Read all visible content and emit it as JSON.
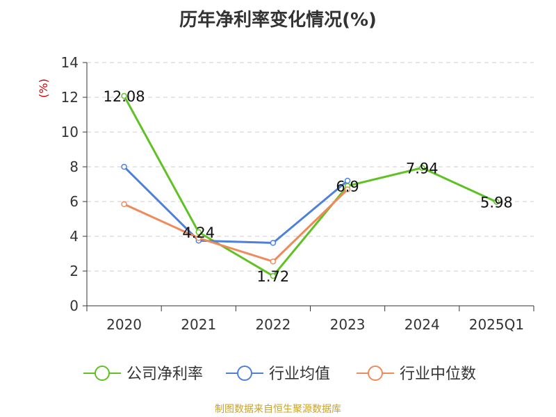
{
  "chart_data": {
    "type": "line",
    "title": "历年净利率变化情况(%)",
    "ylabel": "(%)",
    "xlabel": "",
    "categories": [
      "2020",
      "2021",
      "2022",
      "2023",
      "2024",
      "2025Q1"
    ],
    "ylim": [
      0,
      14
    ],
    "yticks": [
      0,
      2,
      4,
      6,
      8,
      10,
      12,
      14
    ],
    "grid": true,
    "legend_position": "bottom",
    "series": [
      {
        "name": "公司净利率",
        "color": "#5fc123",
        "values": [
          12.08,
          4.24,
          1.72,
          6.9,
          7.94,
          5.98
        ],
        "labels": [
          "12.08",
          "4.24",
          "1.72",
          "6.9",
          "7.94",
          "5.98"
        ]
      },
      {
        "name": "行业均值",
        "color": "#4d80db",
        "values": [
          8.0,
          3.75,
          3.62,
          7.2,
          null,
          null
        ]
      },
      {
        "name": "行业中位数",
        "color": "#f08a5a",
        "values": [
          5.85,
          3.9,
          2.55,
          6.7,
          null,
          null
        ]
      }
    ]
  },
  "footer": {
    "source": "制图数据来自恒生聚源数据库",
    "source_color": "#c9a227"
  },
  "colors": {
    "axis": "#333333",
    "grid": "#cccccc",
    "ylabel": "#cc0000"
  }
}
